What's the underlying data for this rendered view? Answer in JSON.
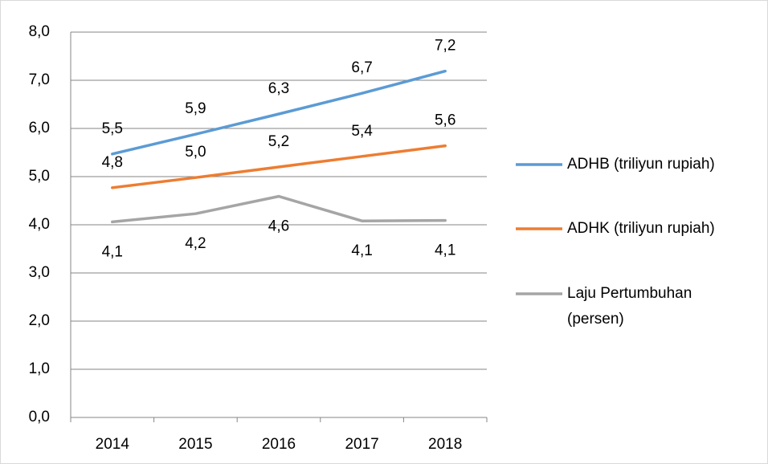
{
  "chart_data": {
    "type": "line",
    "categories": [
      "2014",
      "2015",
      "2016",
      "2017",
      "2018"
    ],
    "series": [
      {
        "name": "ADHB (triliyun rupiah)",
        "color": "#5b9bd5",
        "values": [
          5.47,
          5.88,
          6.3,
          6.73,
          7.19
        ],
        "value_labels": [
          "5,5",
          "5,9",
          "6,3",
          "6,7",
          "7,2"
        ]
      },
      {
        "name": "ADHK (triliyun rupiah)",
        "color": "#ed7d31",
        "values": [
          4.77,
          4.98,
          5.2,
          5.42,
          5.64
        ],
        "value_labels": [
          "4,8",
          "5,0",
          "5,2",
          "5,4",
          "5,6"
        ]
      },
      {
        "name": "Laju Pertumbuhan (persen)",
        "color": "#a5a5a5",
        "values": [
          4.06,
          4.23,
          4.59,
          4.08,
          4.09
        ],
        "value_labels": [
          "4,1",
          "4,2",
          "4,6",
          "4,1",
          "4,1"
        ]
      }
    ],
    "ylim": [
      0,
      8
    ],
    "yticks": [
      {
        "value": 0,
        "label": "0,0"
      },
      {
        "value": 1,
        "label": "1,0"
      },
      {
        "value": 2,
        "label": "2,0"
      },
      {
        "value": 3,
        "label": "3,0"
      },
      {
        "value": 4,
        "label": "4,0"
      },
      {
        "value": 5,
        "label": "5,0"
      },
      {
        "value": 6,
        "label": "6,0"
      },
      {
        "value": 7,
        "label": "7,0"
      },
      {
        "value": 8,
        "label": "8,0"
      }
    ],
    "grid": true,
    "legend": "right"
  }
}
